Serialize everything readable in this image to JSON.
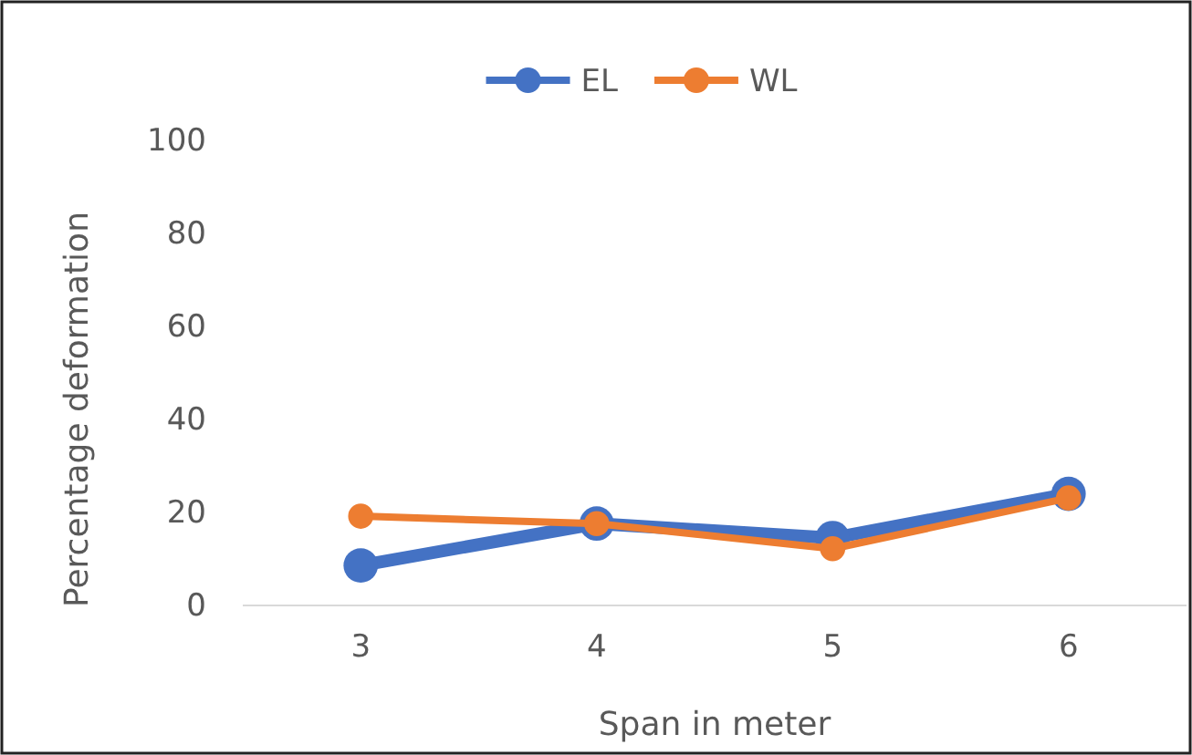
{
  "chart_data": {
    "type": "line",
    "xlabel": "Span in meter",
    "ylabel": "Percentage deformation",
    "categories": [
      "3",
      "4",
      "5",
      "6"
    ],
    "series": [
      {
        "name": "EL",
        "color": "#4472c4",
        "values": [
          8.6,
          17.6,
          14.5,
          24
        ]
      },
      {
        "name": "WL",
        "color": "#ed7d31",
        "values": [
          19.2,
          17.6,
          12.2,
          23.1
        ]
      }
    ],
    "ylim": [
      0,
      100
    ],
    "yticks": [
      0,
      20,
      40,
      60,
      80,
      100
    ],
    "grid": false,
    "legend": "top",
    "marker": "circle",
    "line_style": "solid"
  }
}
